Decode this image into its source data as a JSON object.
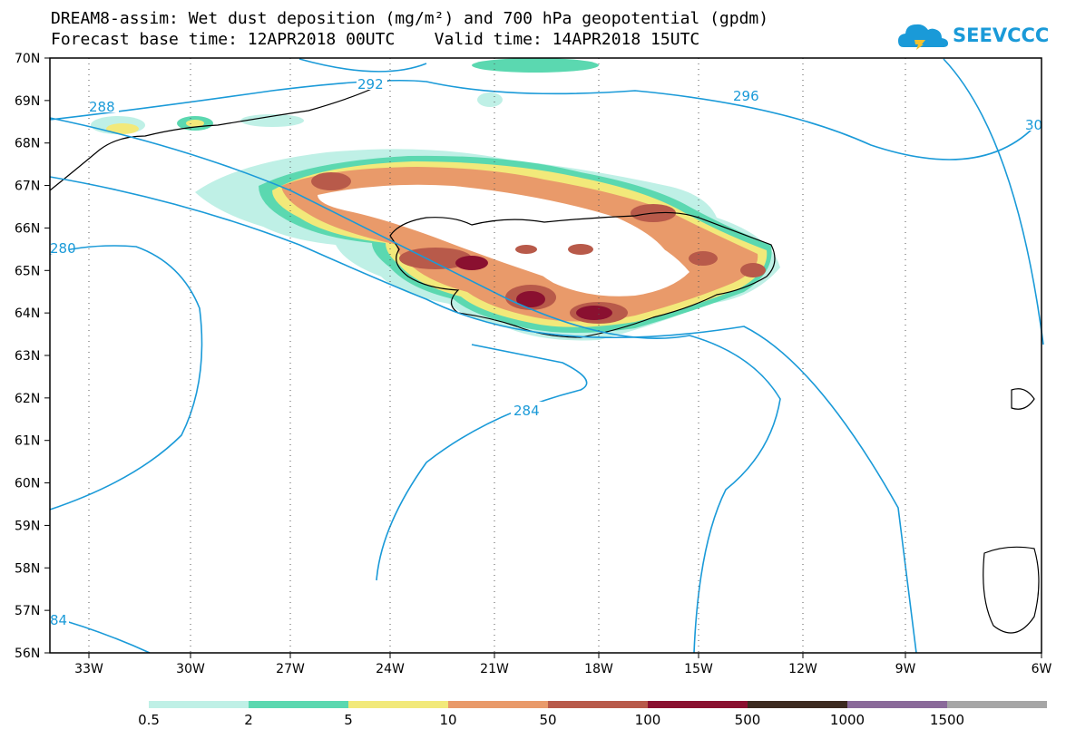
{
  "title": {
    "line1": "DREAM8-assim: Wet dust deposition (mg/m²) and 700 hPa geopotential (gpdm)",
    "line2": "Forecast base time: 12APR2018 00UTC    Valid time: 14APR2018 15UTC"
  },
  "logo": {
    "text": "SEEVCCC",
    "icon": "cloud-icon"
  },
  "axes": {
    "lat_labels": [
      "70N",
      "69N",
      "68N",
      "67N",
      "66N",
      "65N",
      "64N",
      "63N",
      "62N",
      "61N",
      "60N",
      "59N",
      "58N",
      "57N",
      "56N"
    ],
    "lon_labels": [
      "33W",
      "30W",
      "27W",
      "24W",
      "21W",
      "18W",
      "15W",
      "12W",
      "9W",
      "6W"
    ]
  },
  "contours": {
    "labels": [
      "288",
      "292",
      "296",
      "30",
      "280",
      "284",
      "84"
    ],
    "color": "#1a9ad8"
  },
  "legend": {
    "labels": [
      "0.5",
      "2",
      "5",
      "10",
      "50",
      "100",
      "500",
      "1000",
      "1500"
    ],
    "colors": [
      "#bff0e6",
      "#5bd8b0",
      "#f2e97a",
      "#e99a6a",
      "#b85a4a",
      "#8a1030",
      "#3c2a20",
      "#8a6a9a",
      "#a6a6a6"
    ]
  }
}
